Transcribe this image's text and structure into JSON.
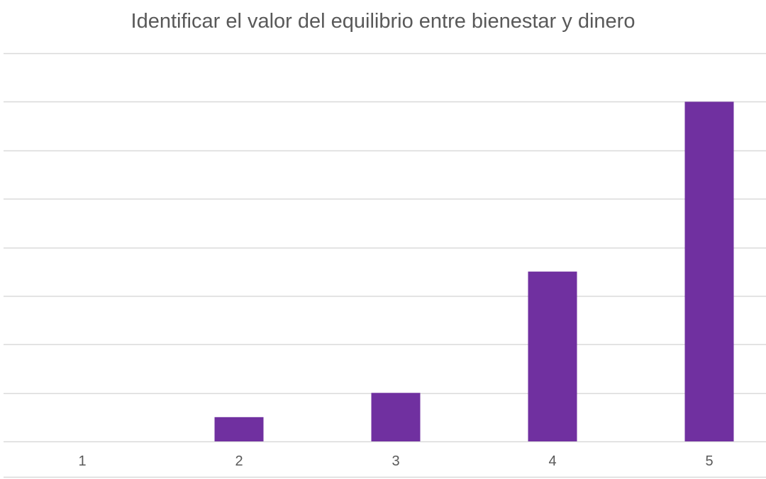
{
  "chart_data": {
    "type": "bar",
    "title": "Identificar el valor del equilibrio entre bienestar y dinero",
    "categories": [
      "1",
      "2",
      "3",
      "4",
      "5"
    ],
    "values": [
      0,
      1,
      2,
      7,
      14
    ],
    "ylim": [
      0,
      16
    ],
    "y_gridline_step": 2,
    "grid": true,
    "y_tick_labels_visible": false,
    "xlabel": "",
    "ylabel": "",
    "bar_color": "#7030A0",
    "grid_color": "#d9d9d9"
  }
}
